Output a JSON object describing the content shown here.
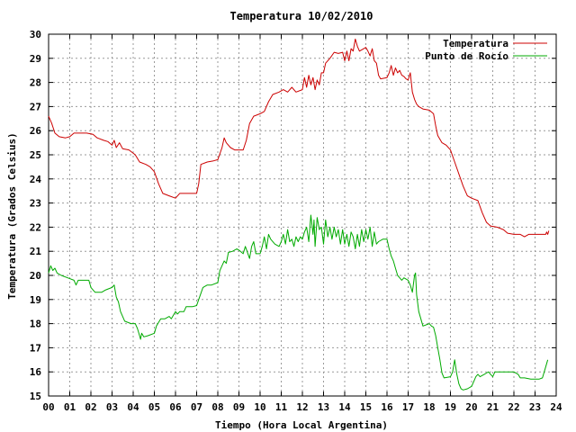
{
  "chart_data": {
    "type": "line",
    "title": "Temperatura 10/02/2010",
    "xlabel": "Tiempo (Hora Local Argentina)",
    "ylabel": "Temperatura (Grados Celsius)",
    "xlim": [
      0,
      24
    ],
    "ylim": [
      15,
      30
    ],
    "xticks": [
      "00",
      "01",
      "02",
      "03",
      "04",
      "05",
      "06",
      "07",
      "08",
      "09",
      "10",
      "11",
      "12",
      "13",
      "14",
      "15",
      "16",
      "17",
      "18",
      "19",
      "20",
      "21",
      "22",
      "23",
      "24"
    ],
    "yticks": [
      "15",
      "16",
      "17",
      "18",
      "19",
      "20",
      "21",
      "22",
      "23",
      "24",
      "25",
      "26",
      "27",
      "28",
      "29",
      "30"
    ],
    "grid": true,
    "legend_position": "top-right",
    "colors": {
      "temperatura": "#cc0000",
      "punto_de_rocio": "#00aa00",
      "grid": "#9a9a9a"
    },
    "series": [
      {
        "name": "Temperatura",
        "points": [
          [
            0,
            26.6
          ],
          [
            0.15,
            26.3
          ],
          [
            0.3,
            25.9
          ],
          [
            0.5,
            25.75
          ],
          [
            0.8,
            25.7
          ],
          [
            1.0,
            25.75
          ],
          [
            1.2,
            25.9
          ],
          [
            1.5,
            25.9
          ],
          [
            1.8,
            25.9
          ],
          [
            2.1,
            25.85
          ],
          [
            2.3,
            25.7
          ],
          [
            2.6,
            25.6
          ],
          [
            2.8,
            25.55
          ],
          [
            3.0,
            25.4
          ],
          [
            3.1,
            25.6
          ],
          [
            3.2,
            25.3
          ],
          [
            3.35,
            25.5
          ],
          [
            3.5,
            25.25
          ],
          [
            3.8,
            25.2
          ],
          [
            4.1,
            25.0
          ],
          [
            4.3,
            24.7
          ],
          [
            4.6,
            24.6
          ],
          [
            4.8,
            24.5
          ],
          [
            5.0,
            24.3
          ],
          [
            5.2,
            23.8
          ],
          [
            5.4,
            23.4
          ],
          [
            5.7,
            23.3
          ],
          [
            6.0,
            23.2
          ],
          [
            6.2,
            23.4
          ],
          [
            6.5,
            23.4
          ],
          [
            6.8,
            23.4
          ],
          [
            7.0,
            23.4
          ],
          [
            7.1,
            23.8
          ],
          [
            7.2,
            24.6
          ],
          [
            7.5,
            24.7
          ],
          [
            7.8,
            24.75
          ],
          [
            8.0,
            24.8
          ],
          [
            8.2,
            25.3
          ],
          [
            8.3,
            25.7
          ],
          [
            8.4,
            25.5
          ],
          [
            8.6,
            25.3
          ],
          [
            8.8,
            25.2
          ],
          [
            9.0,
            25.2
          ],
          [
            9.2,
            25.2
          ],
          [
            9.35,
            25.6
          ],
          [
            9.5,
            26.3
          ],
          [
            9.7,
            26.6
          ],
          [
            10.0,
            26.7
          ],
          [
            10.2,
            26.8
          ],
          [
            10.4,
            27.2
          ],
          [
            10.6,
            27.5
          ],
          [
            10.9,
            27.6
          ],
          [
            11.1,
            27.7
          ],
          [
            11.3,
            27.6
          ],
          [
            11.5,
            27.8
          ],
          [
            11.7,
            27.6
          ],
          [
            12.0,
            27.7
          ],
          [
            12.1,
            28.2
          ],
          [
            12.2,
            27.8
          ],
          [
            12.3,
            28.3
          ],
          [
            12.4,
            27.9
          ],
          [
            12.5,
            28.2
          ],
          [
            12.6,
            27.7
          ],
          [
            12.7,
            28.1
          ],
          [
            12.8,
            27.9
          ],
          [
            12.9,
            28.4
          ],
          [
            13.0,
            28.4
          ],
          [
            13.1,
            28.8
          ],
          [
            13.3,
            29.0
          ],
          [
            13.5,
            29.25
          ],
          [
            13.7,
            29.2
          ],
          [
            13.9,
            29.25
          ],
          [
            14.0,
            28.9
          ],
          [
            14.1,
            29.3
          ],
          [
            14.2,
            28.9
          ],
          [
            14.3,
            29.4
          ],
          [
            14.4,
            29.3
          ],
          [
            14.5,
            29.8
          ],
          [
            14.6,
            29.5
          ],
          [
            14.7,
            29.3
          ],
          [
            14.8,
            29.35
          ],
          [
            15.0,
            29.45
          ],
          [
            15.1,
            29.3
          ],
          [
            15.2,
            29.1
          ],
          [
            15.3,
            29.4
          ],
          [
            15.4,
            28.9
          ],
          [
            15.5,
            28.8
          ],
          [
            15.6,
            28.3
          ],
          [
            15.7,
            28.15
          ],
          [
            16.0,
            28.2
          ],
          [
            16.1,
            28.4
          ],
          [
            16.2,
            28.7
          ],
          [
            16.3,
            28.3
          ],
          [
            16.4,
            28.6
          ],
          [
            16.5,
            28.4
          ],
          [
            16.6,
            28.5
          ],
          [
            16.7,
            28.3
          ],
          [
            16.8,
            28.25
          ],
          [
            16.9,
            28.15
          ],
          [
            17.0,
            28.1
          ],
          [
            17.1,
            28.4
          ],
          [
            17.2,
            27.6
          ],
          [
            17.3,
            27.3
          ],
          [
            17.4,
            27.1
          ],
          [
            17.5,
            27.0
          ],
          [
            17.7,
            26.9
          ],
          [
            18.0,
            26.85
          ],
          [
            18.2,
            26.7
          ],
          [
            18.3,
            26.2
          ],
          [
            18.4,
            25.8
          ],
          [
            18.6,
            25.5
          ],
          [
            18.8,
            25.4
          ],
          [
            19.0,
            25.2
          ],
          [
            19.2,
            24.7
          ],
          [
            19.4,
            24.2
          ],
          [
            19.6,
            23.7
          ],
          [
            19.8,
            23.3
          ],
          [
            20.0,
            23.2
          ],
          [
            20.3,
            23.1
          ],
          [
            20.5,
            22.6
          ],
          [
            20.7,
            22.2
          ],
          [
            20.9,
            22.05
          ],
          [
            21.2,
            22.0
          ],
          [
            21.5,
            21.9
          ],
          [
            21.7,
            21.75
          ],
          [
            22.0,
            21.7
          ],
          [
            22.3,
            21.7
          ],
          [
            22.5,
            21.6
          ],
          [
            22.7,
            21.7
          ],
          [
            23.0,
            21.7
          ],
          [
            23.3,
            21.7
          ],
          [
            23.5,
            21.7
          ],
          [
            23.55,
            21.8
          ],
          [
            23.6,
            21.7
          ],
          [
            23.65,
            21.85
          ]
        ]
      },
      {
        "name": "Punto de Rocío",
        "points": [
          [
            0,
            20.1
          ],
          [
            0.1,
            20.4
          ],
          [
            0.2,
            20.2
          ],
          [
            0.3,
            20.3
          ],
          [
            0.4,
            20.1
          ],
          [
            0.6,
            20.0
          ],
          [
            0.9,
            19.9
          ],
          [
            1.2,
            19.8
          ],
          [
            1.3,
            19.6
          ],
          [
            1.4,
            19.8
          ],
          [
            1.6,
            19.8
          ],
          [
            1.9,
            19.8
          ],
          [
            2.0,
            19.5
          ],
          [
            2.2,
            19.3
          ],
          [
            2.5,
            19.3
          ],
          [
            2.7,
            19.4
          ],
          [
            3.0,
            19.5
          ],
          [
            3.1,
            19.6
          ],
          [
            3.2,
            19.1
          ],
          [
            3.3,
            18.9
          ],
          [
            3.4,
            18.5
          ],
          [
            3.6,
            18.1
          ],
          [
            3.9,
            18.0
          ],
          [
            4.1,
            18.0
          ],
          [
            4.2,
            17.8
          ],
          [
            4.3,
            17.5
          ],
          [
            4.35,
            17.35
          ],
          [
            4.4,
            17.6
          ],
          [
            4.5,
            17.45
          ],
          [
            4.7,
            17.5
          ],
          [
            5.0,
            17.6
          ],
          [
            5.1,
            17.9
          ],
          [
            5.3,
            18.2
          ],
          [
            5.5,
            18.2
          ],
          [
            5.7,
            18.3
          ],
          [
            5.8,
            18.2
          ],
          [
            6.0,
            18.5
          ],
          [
            6.1,
            18.4
          ],
          [
            6.2,
            18.5
          ],
          [
            6.4,
            18.5
          ],
          [
            6.5,
            18.7
          ],
          [
            6.8,
            18.7
          ],
          [
            7.0,
            18.75
          ],
          [
            7.1,
            19.0
          ],
          [
            7.3,
            19.5
          ],
          [
            7.5,
            19.6
          ],
          [
            7.7,
            19.6
          ],
          [
            8.0,
            19.7
          ],
          [
            8.1,
            20.2
          ],
          [
            8.3,
            20.6
          ],
          [
            8.4,
            20.5
          ],
          [
            8.5,
            20.95
          ],
          [
            8.7,
            21.0
          ],
          [
            8.9,
            21.1
          ],
          [
            9.0,
            21.05
          ],
          [
            9.2,
            20.9
          ],
          [
            9.3,
            21.2
          ],
          [
            9.5,
            20.7
          ],
          [
            9.6,
            21.2
          ],
          [
            9.7,
            21.4
          ],
          [
            9.8,
            20.9
          ],
          [
            10.0,
            20.9
          ],
          [
            10.1,
            21.2
          ],
          [
            10.2,
            21.6
          ],
          [
            10.3,
            21.1
          ],
          [
            10.4,
            21.7
          ],
          [
            10.5,
            21.5
          ],
          [
            10.7,
            21.3
          ],
          [
            10.9,
            21.2
          ],
          [
            11.0,
            21.4
          ],
          [
            11.1,
            21.7
          ],
          [
            11.2,
            21.3
          ],
          [
            11.3,
            21.9
          ],
          [
            11.4,
            21.4
          ],
          [
            11.5,
            21.5
          ],
          [
            11.6,
            21.2
          ],
          [
            11.7,
            21.6
          ],
          [
            11.8,
            21.4
          ],
          [
            11.9,
            21.6
          ],
          [
            12.0,
            21.5
          ],
          [
            12.1,
            21.8
          ],
          [
            12.2,
            22.0
          ],
          [
            12.3,
            21.4
          ],
          [
            12.4,
            22.5
          ],
          [
            12.45,
            22.1
          ],
          [
            12.5,
            21.7
          ],
          [
            12.55,
            22.3
          ],
          [
            12.6,
            21.2
          ],
          [
            12.7,
            22.4
          ],
          [
            12.8,
            21.9
          ],
          [
            12.9,
            22.0
          ],
          [
            13.0,
            21.3
          ],
          [
            13.1,
            22.3
          ],
          [
            13.2,
            21.6
          ],
          [
            13.3,
            22.0
          ],
          [
            13.4,
            21.5
          ],
          [
            13.5,
            22.0
          ],
          [
            13.6,
            21.6
          ],
          [
            13.7,
            21.9
          ],
          [
            13.8,
            21.3
          ],
          [
            13.9,
            21.9
          ],
          [
            14.0,
            21.3
          ],
          [
            14.1,
            21.7
          ],
          [
            14.2,
            21.2
          ],
          [
            14.3,
            21.8
          ],
          [
            14.4,
            21.6
          ],
          [
            14.5,
            21.1
          ],
          [
            14.6,
            21.7
          ],
          [
            14.7,
            21.2
          ],
          [
            14.8,
            21.9
          ],
          [
            14.9,
            21.4
          ],
          [
            15.0,
            21.9
          ],
          [
            15.1,
            21.5
          ],
          [
            15.2,
            22.0
          ],
          [
            15.3,
            21.2
          ],
          [
            15.4,
            21.8
          ],
          [
            15.5,
            21.3
          ],
          [
            15.6,
            21.4
          ],
          [
            15.8,
            21.5
          ],
          [
            16.0,
            21.5
          ],
          [
            16.1,
            21.1
          ],
          [
            16.2,
            20.8
          ],
          [
            16.3,
            20.6
          ],
          [
            16.4,
            20.3
          ],
          [
            16.5,
            20.0
          ],
          [
            16.6,
            19.9
          ],
          [
            16.7,
            19.8
          ],
          [
            16.8,
            19.9
          ],
          [
            17.0,
            19.8
          ],
          [
            17.1,
            19.6
          ],
          [
            17.2,
            19.3
          ],
          [
            17.3,
            20.0
          ],
          [
            17.35,
            20.1
          ],
          [
            17.4,
            19.2
          ],
          [
            17.5,
            18.5
          ],
          [
            17.6,
            18.2
          ],
          [
            17.7,
            17.9
          ],
          [
            18.0,
            18.0
          ],
          [
            18.1,
            17.9
          ],
          [
            18.2,
            17.85
          ],
          [
            18.3,
            17.5
          ],
          [
            18.4,
            17.0
          ],
          [
            18.5,
            16.5
          ],
          [
            18.6,
            15.95
          ],
          [
            18.7,
            15.75
          ],
          [
            19.0,
            15.8
          ],
          [
            19.1,
            16.0
          ],
          [
            19.2,
            16.5
          ],
          [
            19.3,
            15.9
          ],
          [
            19.4,
            15.5
          ],
          [
            19.5,
            15.3
          ],
          [
            19.6,
            15.25
          ],
          [
            19.8,
            15.3
          ],
          [
            20.0,
            15.4
          ],
          [
            20.1,
            15.6
          ],
          [
            20.2,
            15.8
          ],
          [
            20.3,
            15.9
          ],
          [
            20.4,
            15.8
          ],
          [
            20.5,
            15.85
          ],
          [
            20.6,
            15.9
          ],
          [
            20.7,
            15.95
          ],
          [
            20.8,
            16.0
          ],
          [
            20.9,
            15.9
          ],
          [
            21.0,
            15.8
          ],
          [
            21.1,
            16.0
          ],
          [
            21.5,
            16.0
          ],
          [
            21.7,
            16.0
          ],
          [
            22.0,
            16.0
          ],
          [
            22.2,
            15.9
          ],
          [
            22.3,
            15.75
          ],
          [
            22.5,
            15.75
          ],
          [
            22.8,
            15.7
          ],
          [
            23.0,
            15.7
          ],
          [
            23.2,
            15.7
          ],
          [
            23.35,
            15.75
          ],
          [
            23.4,
            15.9
          ],
          [
            23.5,
            16.2
          ],
          [
            23.6,
            16.5
          ]
        ]
      }
    ]
  }
}
